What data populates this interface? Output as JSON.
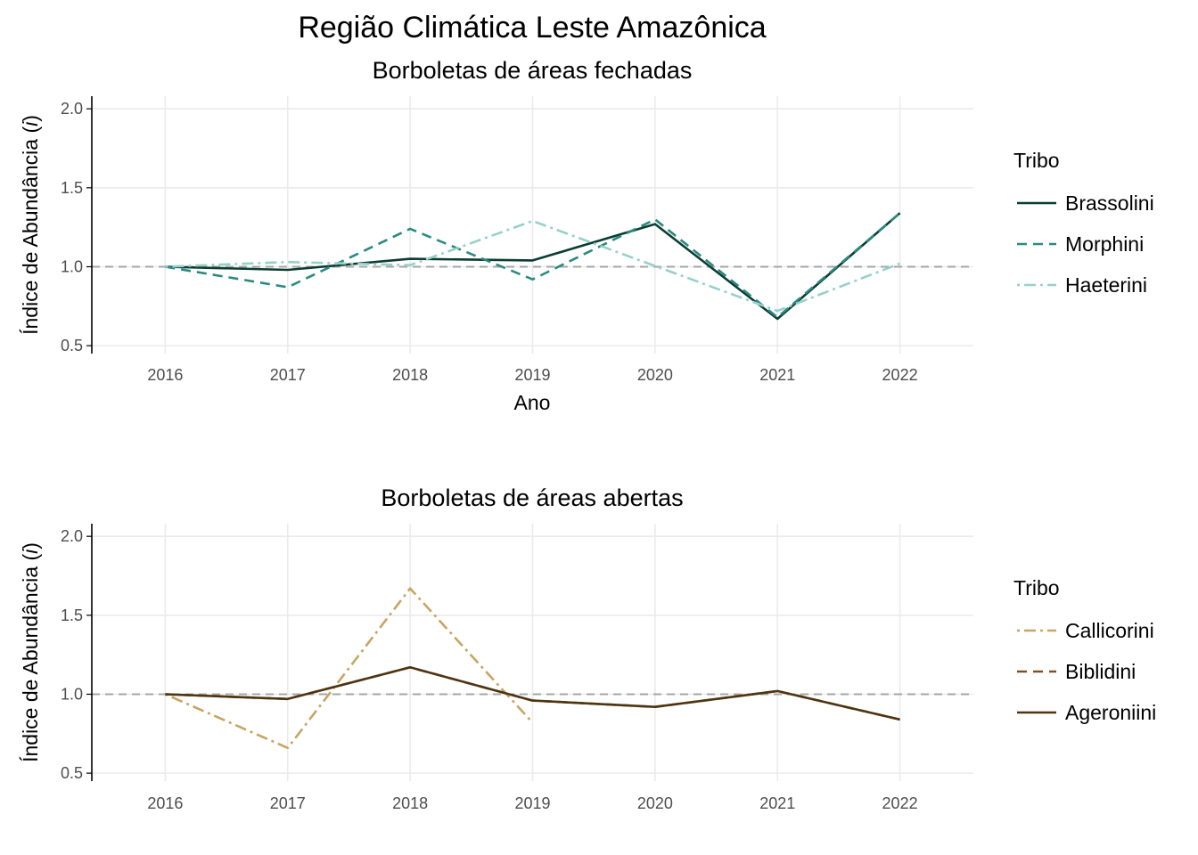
{
  "title": "Região Climática Leste Amazônica",
  "colors": {
    "brassolini": "#0b3d33",
    "morphini": "#2a8a82",
    "haeterini": "#96d1c7",
    "callicorini": "#c9a461",
    "biblidini": "#7a5325",
    "ageroniini": "#4e3411",
    "reference": "#a6a6a6"
  },
  "chart_data": [
    {
      "type": "line",
      "title": "Borboletas de áreas fechadas",
      "xlabel": "Ano",
      "ylabel": "Índice de Abundância (i)",
      "ylabel_main": "Índice de Abundância (",
      "ylabel_italic": "i",
      "ylabel_close": ")",
      "x_ticks": [
        "2016",
        "2017",
        "2018",
        "2019",
        "2020",
        "2021",
        "2022"
      ],
      "y_ticks": [
        "0.5",
        "1.0",
        "1.5",
        "2.0"
      ],
      "ylim": [
        0.45,
        2.08
      ],
      "xlim": [
        2015.4,
        2022.6
      ],
      "reference_y": 1.0,
      "legend_title": "Tribo",
      "legend_position": "right",
      "grid": true,
      "series": [
        {
          "name": "Brassolini",
          "dash": "solid",
          "color_key": "brassolini",
          "points": [
            [
              2016,
              1.0
            ],
            [
              2017,
              0.98
            ],
            [
              2018,
              1.05
            ],
            [
              2019,
              1.04
            ],
            [
              2020,
              1.27
            ],
            [
              2021,
              0.67
            ],
            [
              2022,
              1.34
            ]
          ]
        },
        {
          "name": "Morphini",
          "dash": "dashed",
          "color_key": "morphini",
          "points": [
            [
              2016,
              1.0
            ],
            [
              2017,
              0.87
            ],
            [
              2018,
              1.24
            ],
            [
              2019,
              0.92
            ],
            [
              2020,
              1.3
            ],
            [
              2021,
              0.68
            ],
            [
              2022,
              1.34
            ]
          ]
        },
        {
          "name": "Haeterini",
          "dash": "dotdash",
          "color_key": "haeterini",
          "points": [
            [
              2016,
              1.0
            ],
            [
              2017,
              1.03
            ],
            [
              2018,
              1.01
            ],
            [
              2019,
              1.29
            ],
            [
              2021,
              0.72
            ],
            [
              2022,
              1.02
            ]
          ]
        }
      ]
    },
    {
      "type": "line",
      "title": "Borboletas de áreas abertas",
      "xlabel": "",
      "ylabel": "Índice de Abundância (i)",
      "ylabel_main": "Índice de Abundância (",
      "ylabel_italic": "i",
      "ylabel_close": ")",
      "x_ticks": [
        "2016",
        "2017",
        "2018",
        "2019",
        "2020",
        "2021",
        "2022"
      ],
      "y_ticks": [
        "0.5",
        "1.0",
        "1.5",
        "2.0"
      ],
      "ylim": [
        0.45,
        2.08
      ],
      "xlim": [
        2015.4,
        2022.6
      ],
      "reference_y": 1.0,
      "legend_title": "Tribo",
      "legend_position": "right",
      "grid": true,
      "series": [
        {
          "name": "Callicorini",
          "dash": "dotdash",
          "color_key": "callicorini",
          "points": [
            [
              2016,
              1.0
            ],
            [
              2017,
              0.66
            ],
            [
              2018,
              1.67
            ],
            [
              2019,
              0.82
            ]
          ]
        },
        {
          "name": "Biblidini",
          "dash": "dashed",
          "color_key": "biblidini",
          "points": [
            [
              2016,
              1.0
            ],
            [
              2017,
              0.97
            ],
            [
              2018,
              1.17
            ],
            [
              2019,
              0.96
            ],
            [
              2020,
              0.92
            ],
            [
              2021,
              1.02
            ],
            [
              2022,
              0.84
            ]
          ]
        },
        {
          "name": "Ageroniini",
          "dash": "solid",
          "color_key": "ageroniini",
          "points": [
            [
              2016,
              1.0
            ],
            [
              2017,
              0.97
            ],
            [
              2018,
              1.17
            ],
            [
              2019,
              0.96
            ],
            [
              2020,
              0.92
            ],
            [
              2021,
              1.02
            ],
            [
              2022,
              0.84
            ]
          ]
        }
      ]
    }
  ]
}
